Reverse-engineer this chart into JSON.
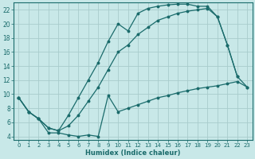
{
  "xlabel": "Humidex (Indice chaleur)",
  "bg_color": "#c8e8e8",
  "grid_color": "#a8cccc",
  "line_color": "#1a6b6b",
  "xlim": [
    -0.5,
    23.5
  ],
  "ylim": [
    3.5,
    23.0
  ],
  "xticks": [
    0,
    1,
    2,
    3,
    4,
    5,
    6,
    7,
    8,
    9,
    10,
    11,
    12,
    13,
    14,
    15,
    16,
    17,
    18,
    19,
    20,
    21,
    22,
    23
  ],
  "yticks": [
    4,
    6,
    8,
    10,
    12,
    14,
    16,
    18,
    20,
    22
  ],
  "line1_x": [
    0,
    1,
    2,
    3,
    4,
    5,
    6,
    7,
    8,
    9,
    10,
    11,
    12,
    13,
    14,
    15,
    16,
    17,
    18,
    19,
    20,
    21,
    22
  ],
  "line1_y": [
    9.5,
    7.5,
    6.5,
    5.2,
    4.8,
    7.0,
    9.5,
    12.0,
    14.5,
    17.5,
    20.0,
    19.0,
    21.5,
    22.2,
    22.5,
    22.7,
    22.8,
    22.8,
    22.5,
    22.5,
    21.0,
    17.0,
    12.5
  ],
  "line2_x": [
    0,
    1,
    2,
    3,
    4,
    5,
    6,
    7,
    8,
    9,
    10,
    11,
    12,
    13,
    14,
    15,
    16,
    17,
    18,
    19,
    20,
    21,
    22,
    23
  ],
  "line2_y": [
    9.5,
    7.5,
    6.5,
    5.2,
    4.8,
    5.5,
    7.0,
    9.0,
    11.0,
    13.5,
    16.0,
    17.0,
    18.5,
    19.5,
    20.5,
    21.0,
    21.5,
    21.8,
    22.0,
    22.2,
    21.0,
    17.0,
    12.5,
    11.0
  ],
  "line3_x": [
    0,
    1,
    2,
    3,
    4,
    5,
    6,
    7,
    8,
    9,
    10,
    11,
    12,
    13,
    14,
    15,
    16,
    17,
    18,
    19,
    20,
    21,
    22,
    23
  ],
  "line3_y": [
    9.5,
    7.5,
    6.5,
    4.5,
    4.5,
    4.2,
    4.0,
    4.2,
    4.0,
    9.8,
    7.5,
    8.0,
    8.5,
    9.0,
    9.5,
    9.8,
    10.2,
    10.5,
    10.8,
    11.0,
    11.2,
    11.5,
    11.8,
    11.0
  ]
}
